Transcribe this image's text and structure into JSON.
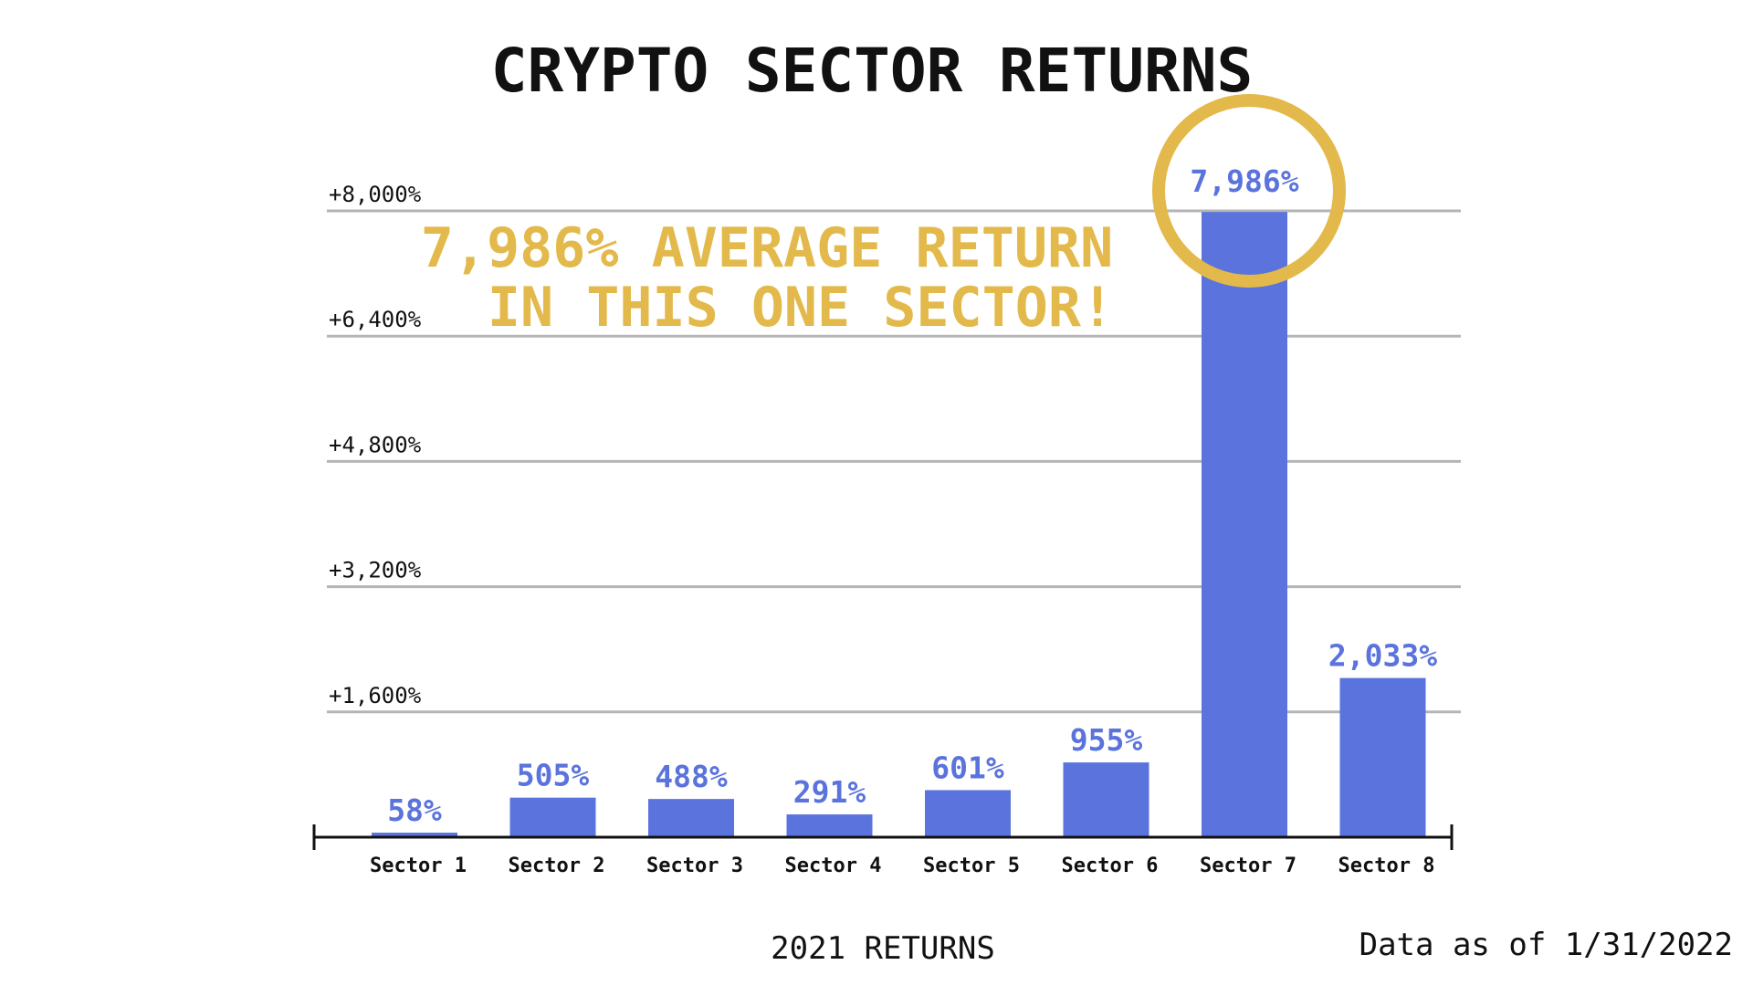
{
  "chart_data": {
    "type": "bar",
    "title": "CRYPTO SECTOR RETURNS",
    "categories": [
      "Sector 1",
      "Sector 2",
      "Sector 3",
      "Sector 4",
      "Sector 5",
      "Sector 6",
      "Sector 7",
      "Sector 8"
    ],
    "values": [
      58,
      505,
      488,
      291,
      601,
      955,
      7986,
      2033
    ],
    "value_labels": [
      "58%",
      "505%",
      "488%",
      "291%",
      "601%",
      "955%",
      "7,986%",
      "2,033%"
    ],
    "ylim": [
      0,
      8000
    ],
    "yticks": [
      1600,
      3200,
      4800,
      6400,
      8000
    ],
    "ytick_labels": [
      "+1,600%",
      "+3,200%",
      "+4,800%",
      "+6,400%",
      "+8,000%"
    ],
    "xlabel": "2021 RETURNS",
    "ylabel": "",
    "grid": true,
    "highlight_index": 6,
    "annotation": {
      "line1": "7,986% AVERAGE RETURN",
      "line2": "IN THIS ONE SECTOR!"
    },
    "source_note": "Data as of 1/31/2022"
  },
  "colors": {
    "bar": "#5b73dc",
    "label": "#5b73dc",
    "highlight": "#e2b94a",
    "grid": "#b5b5b5",
    "axis": "#111111",
    "text": "#111111"
  }
}
